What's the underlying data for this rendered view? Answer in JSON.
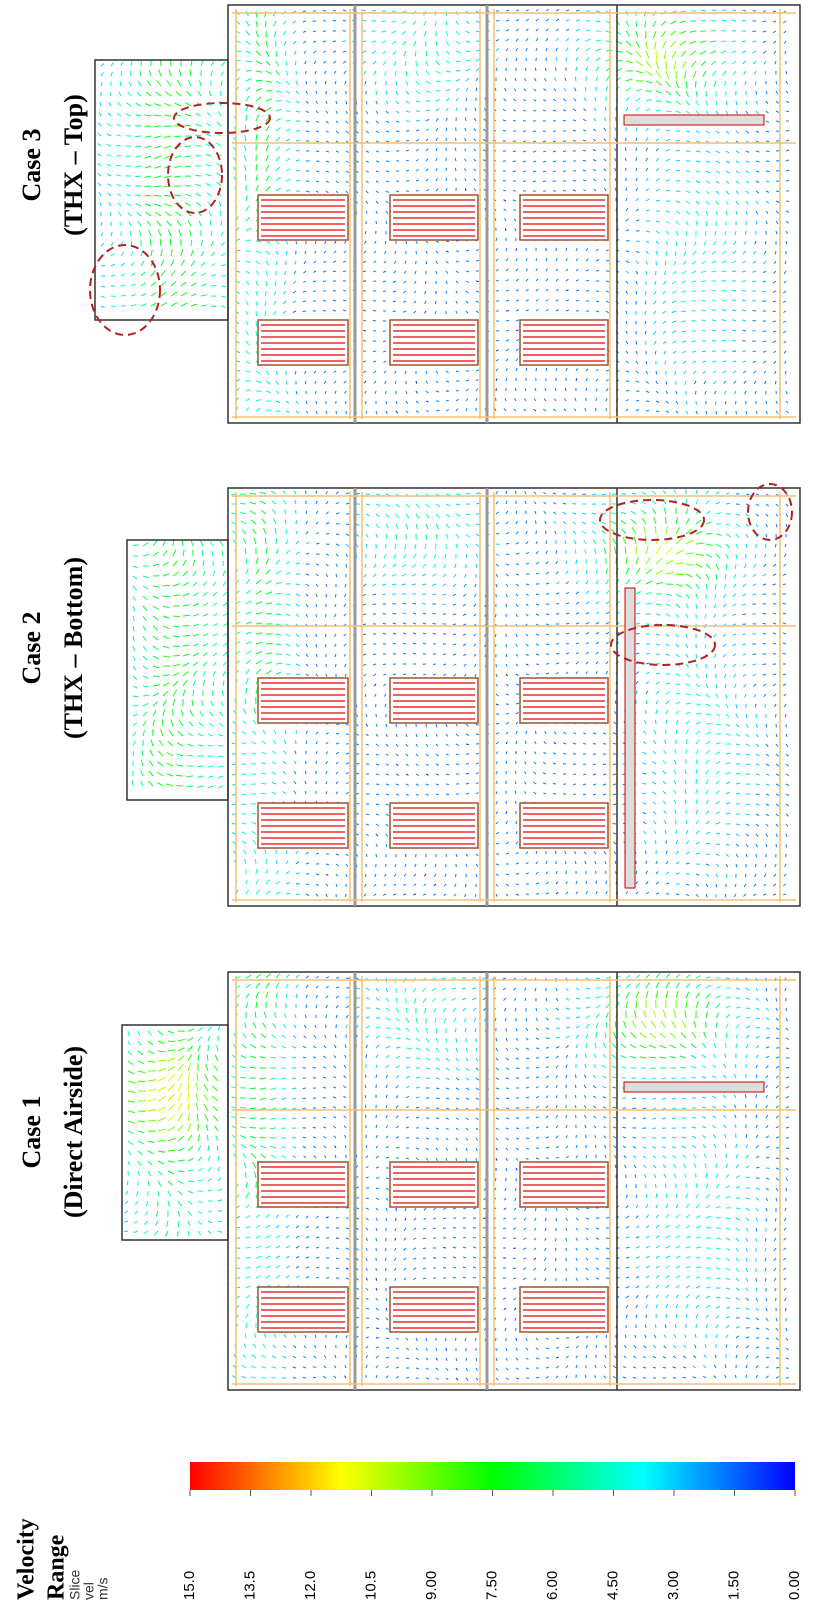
{
  "cases": [
    {
      "title": "Case 1",
      "subtitle": "(Direct Airside)"
    },
    {
      "title": "Case 2",
      "subtitle": "(THX – Bottom)"
    },
    {
      "title": "Case 3",
      "subtitle": "(THX – Top)"
    }
  ],
  "legend": {
    "title_lines": [
      "Velocity",
      "Range"
    ],
    "quantity_lines": [
      "Slice",
      "vel",
      "m/s"
    ],
    "range": [
      0,
      15
    ],
    "colors": [
      "#0000ff",
      "#00ffff",
      "#00ff00",
      "#ffff00",
      "#ff0000"
    ],
    "ticks": [
      {
        "value": 15,
        "label": "15.0"
      },
      {
        "value": 13.5,
        "label": "13.5"
      },
      {
        "value": 12,
        "label": "12.0"
      },
      {
        "value": 10.5,
        "label": "10.5"
      },
      {
        "value": 9,
        "label": "9.00"
      },
      {
        "value": 7.5,
        "label": "7.50"
      },
      {
        "value": 6,
        "label": "6.00"
      },
      {
        "value": 4.5,
        "label": "4.50"
      },
      {
        "value": 3,
        "label": "3.00"
      },
      {
        "value": 1.5,
        "label": "1.50"
      },
      {
        "value": 0,
        "label": "0.00"
      }
    ]
  }
}
